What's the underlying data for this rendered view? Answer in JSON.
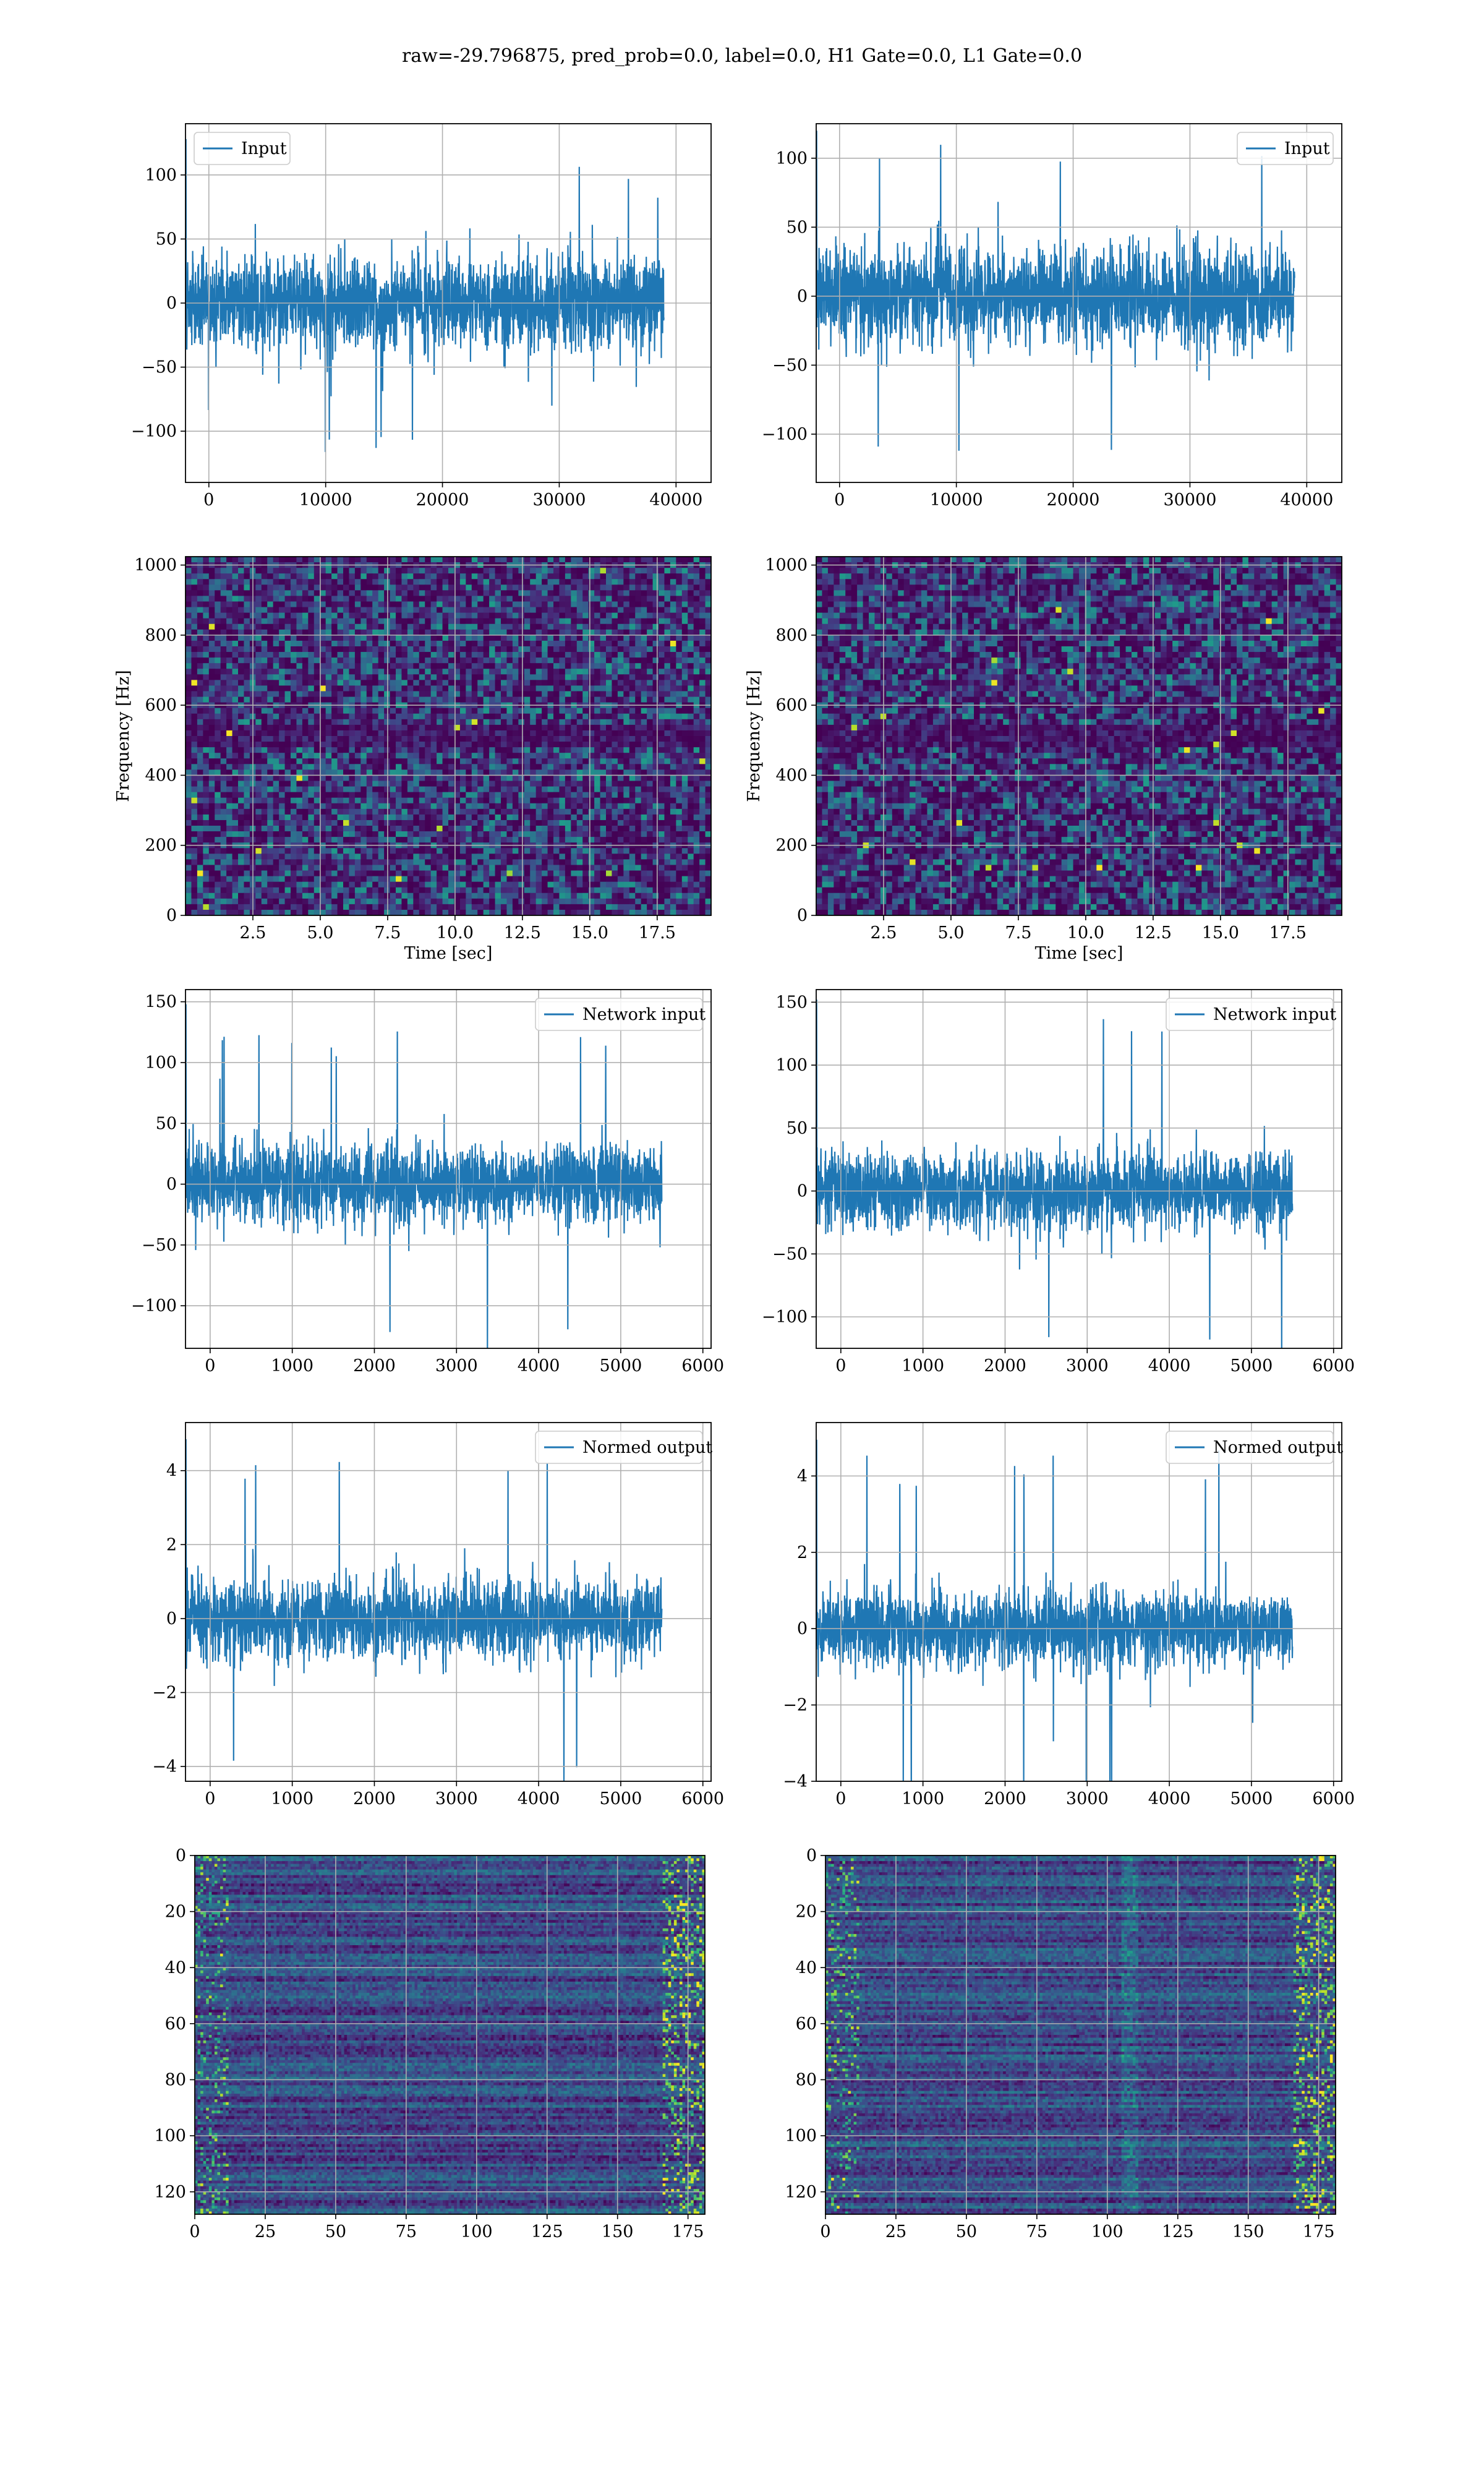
{
  "figure": {
    "suptitle": "raw=-29.796875, pred_prob=0.0, label=0.0, H1 Gate=0.0, L1 Gate=0.0"
  },
  "colors": {
    "line": "#1f77b4",
    "grid": "#b0b0b0",
    "viridis": [
      "#440154",
      "#482878",
      "#3e4989",
      "#31688e",
      "#26828e",
      "#1f9e89",
      "#35b779",
      "#6ece58",
      "#b5de2b",
      "#fde725"
    ]
  },
  "chart_data": [
    {
      "id": "input-h1",
      "type": "line",
      "legend": "Input",
      "legend_loc": "upper left",
      "xlim": [
        -2000,
        43000
      ],
      "ylim": [
        -140,
        140
      ],
      "n": 40960,
      "amp": 25,
      "spike_max": 128,
      "xticks": [
        0,
        10000,
        20000,
        30000,
        40000
      ],
      "yticks": [
        -100,
        -50,
        0,
        50,
        100
      ],
      "xticklabels": [
        "0",
        "10000",
        "20000",
        "30000",
        "40000"
      ],
      "yticklabels": [
        "−100",
        "−50",
        "0",
        "50",
        "100"
      ],
      "xlabel": "",
      "ylabel": "",
      "grid": true
    },
    {
      "id": "input-l1",
      "type": "line",
      "legend": "Input",
      "legend_loc": "upper right",
      "xlim": [
        -2000,
        43000
      ],
      "ylim": [
        -135,
        125
      ],
      "n": 40960,
      "amp": 24,
      "spike_max": 120,
      "xticks": [
        0,
        10000,
        20000,
        30000,
        40000
      ],
      "yticks": [
        -100,
        -50,
        0,
        50,
        100
      ],
      "xticklabels": [
        "0",
        "10000",
        "20000",
        "30000",
        "40000"
      ],
      "yticklabels": [
        "−100",
        "−50",
        "0",
        "50",
        "100"
      ],
      "xlabel": "",
      "ylabel": "",
      "grid": true
    },
    {
      "id": "spectrogram-h1",
      "type": "heatmap",
      "xlim": [
        0,
        19.5
      ],
      "ylim": [
        0,
        1024
      ],
      "xticks": [
        2.5,
        5.0,
        7.5,
        10.0,
        12.5,
        15.0,
        17.5
      ],
      "yticks": [
        0,
        200,
        400,
        600,
        800,
        1000
      ],
      "xticklabels": [
        "2.5",
        "5.0",
        "7.5",
        "10.0",
        "12.5",
        "15.0",
        "17.5"
      ],
      "yticklabels": [
        "0",
        "200",
        "400",
        "600",
        "800",
        "1000"
      ],
      "xlabel": "Time [sec]",
      "ylabel": "Frequency [Hz]",
      "grid": true,
      "colormap": "viridis"
    },
    {
      "id": "spectrogram-l1",
      "type": "heatmap",
      "xlim": [
        0,
        19.5
      ],
      "ylim": [
        0,
        1024
      ],
      "xticks": [
        2.5,
        5.0,
        7.5,
        10.0,
        12.5,
        15.0,
        17.5
      ],
      "yticks": [
        0,
        200,
        400,
        600,
        800,
        1000
      ],
      "xticklabels": [
        "2.5",
        "5.0",
        "7.5",
        "10.0",
        "12.5",
        "15.0",
        "17.5"
      ],
      "yticklabels": [
        "0",
        "200",
        "400",
        "600",
        "800",
        "1000"
      ],
      "xlabel": "Time [sec]",
      "ylabel": "Frequency [Hz]",
      "grid": true,
      "colormap": "viridis"
    },
    {
      "id": "network-input-h1",
      "type": "line",
      "legend": "Network input",
      "legend_loc": "upper right",
      "xlim": [
        -300,
        6100
      ],
      "ylim": [
        -135,
        160
      ],
      "n": 5800,
      "amp": 22,
      "spike_max": 148,
      "xticks": [
        0,
        1000,
        2000,
        3000,
        4000,
        5000,
        6000
      ],
      "yticks": [
        -100,
        -50,
        0,
        50,
        100,
        150
      ],
      "xticklabels": [
        "0",
        "1000",
        "2000",
        "3000",
        "4000",
        "5000",
        "6000"
      ],
      "yticklabels": [
        "−100",
        "−50",
        "0",
        "50",
        "100",
        "150"
      ],
      "xlabel": "",
      "ylabel": "",
      "grid": true
    },
    {
      "id": "network-input-l1",
      "type": "line",
      "legend": "Network input",
      "legend_loc": "upper right",
      "xlim": [
        -300,
        6100
      ],
      "ylim": [
        -125,
        160
      ],
      "n": 5800,
      "amp": 21,
      "spike_max": 152,
      "xticks": [
        0,
        1000,
        2000,
        3000,
        4000,
        5000,
        6000
      ],
      "yticks": [
        -100,
        -50,
        0,
        50,
        100,
        150
      ],
      "xticklabels": [
        "0",
        "1000",
        "2000",
        "3000",
        "4000",
        "5000",
        "6000"
      ],
      "yticklabels": [
        "−100",
        "−50",
        "0",
        "50",
        "100",
        "150"
      ],
      "xlabel": "",
      "ylabel": "",
      "grid": true
    },
    {
      "id": "normed-output-h1",
      "type": "line",
      "legend": "Normed output",
      "legend_loc": "upper right",
      "xlim": [
        -300,
        6100
      ],
      "ylim": [
        -4.4,
        5.3
      ],
      "n": 5800,
      "amp": 0.72,
      "spike_max": 4.85,
      "xticks": [
        0,
        1000,
        2000,
        3000,
        4000,
        5000,
        6000
      ],
      "yticks": [
        -4,
        -2,
        0,
        2,
        4
      ],
      "xticklabels": [
        "0",
        "1000",
        "2000",
        "3000",
        "4000",
        "5000",
        "6000"
      ],
      "yticklabels": [
        "−4",
        "−2",
        "0",
        "2",
        "4"
      ],
      "xlabel": "",
      "ylabel": "",
      "grid": true
    },
    {
      "id": "normed-output-l1",
      "type": "line",
      "legend": "Normed output",
      "legend_loc": "upper right",
      "xlim": [
        -300,
        6100
      ],
      "ylim": [
        -4.0,
        5.4
      ],
      "n": 5800,
      "amp": 0.7,
      "spike_max": 4.95,
      "xticks": [
        0,
        1000,
        2000,
        3000,
        4000,
        5000,
        6000
      ],
      "yticks": [
        -4,
        -2,
        0,
        2,
        4
      ],
      "xticklabels": [
        "0",
        "1000",
        "2000",
        "3000",
        "4000",
        "5000",
        "6000"
      ],
      "yticklabels": [
        "−4",
        "−2",
        "0",
        "2",
        "4"
      ],
      "xlabel": "",
      "ylabel": "",
      "grid": true
    },
    {
      "id": "feature-map-h1",
      "type": "heatmap",
      "xlim": [
        0,
        181
      ],
      "ylim": [
        128,
        0
      ],
      "xticks": [
        0,
        25,
        50,
        75,
        100,
        125,
        150,
        175
      ],
      "yticks": [
        0,
        20,
        40,
        60,
        80,
        100,
        120
      ],
      "xticklabels": [
        "0",
        "25",
        "50",
        "75",
        "100",
        "125",
        "150",
        "175"
      ],
      "yticklabels": [
        "0",
        "20",
        "40",
        "60",
        "80",
        "100",
        "120"
      ],
      "xlabel": "",
      "ylabel": "",
      "grid": true,
      "colormap": "viridis"
    },
    {
      "id": "feature-map-l1",
      "type": "heatmap",
      "xlim": [
        0,
        181
      ],
      "ylim": [
        128,
        0
      ],
      "xticks": [
        0,
        25,
        50,
        75,
        100,
        125,
        150,
        175
      ],
      "yticks": [
        0,
        20,
        40,
        60,
        80,
        100,
        120
      ],
      "xticklabels": [
        "0",
        "25",
        "50",
        "75",
        "100",
        "125",
        "150",
        "175"
      ],
      "yticklabels": [
        "0",
        "20",
        "40",
        "60",
        "80",
        "100",
        "120"
      ],
      "xlabel": "",
      "ylabel": "",
      "grid": true,
      "colormap": "viridis"
    }
  ]
}
